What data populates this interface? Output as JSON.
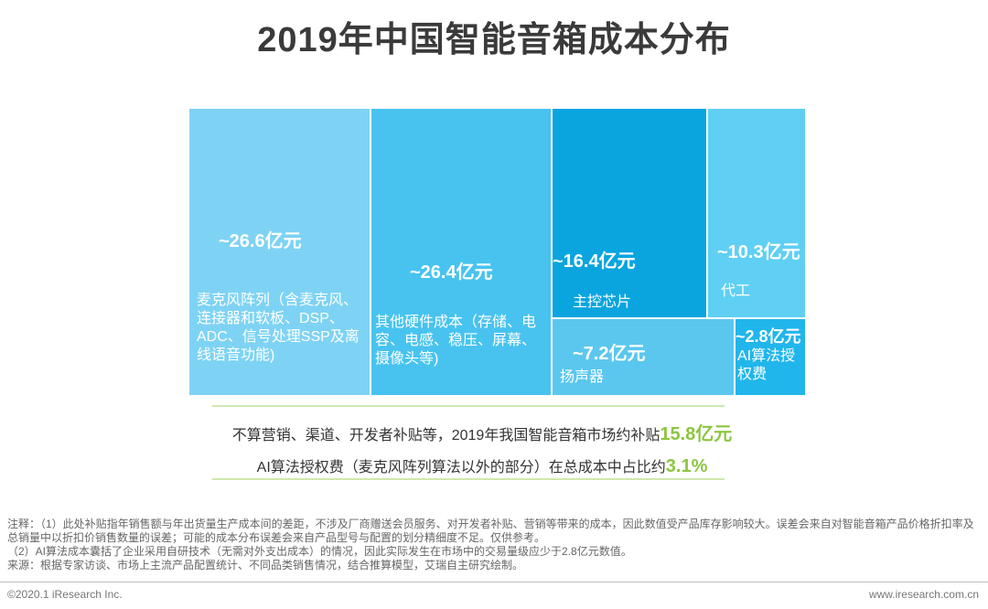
{
  "title": "2019年中国智能音箱成本分布",
  "chart_data": {
    "type": "treemap",
    "title": "2019年中国智能音箱成本分布",
    "unit": "亿元",
    "items": [
      {
        "value_label": "~26.6亿元",
        "value": 26.6,
        "label": "麦克风阵列（含麦克风、连接器和软板、DSP、ADC、信号处理SSP及离线语音功能)",
        "color": "#7ed3f4"
      },
      {
        "value_label": "~26.4亿元",
        "value": 26.4,
        "label": "其他硬件成本（存储、电容、电感、稳压、屏幕、摄像头等)",
        "color": "#48c3ef"
      },
      {
        "value_label": "~16.4亿元",
        "value": 16.4,
        "label": "主控芯片",
        "color": "#0aa5df"
      },
      {
        "value_label": "~10.3亿元",
        "value": 10.3,
        "label": "代工",
        "color": "#5fd0f3"
      },
      {
        "value_label": "~7.2亿元",
        "value": 7.2,
        "label": "扬声器",
        "color": "#5bc7ef"
      },
      {
        "value_label": "~2.8亿元",
        "value": 2.8,
        "label": "AI算法授权费",
        "color": "#21b6eb"
      }
    ]
  },
  "notes": {
    "subsidy_prefix": "不算营销、渠道、开发者补贴等，2019年我国智能音箱市场约补贴",
    "subsidy_value": "15.8亿元",
    "ai_prefix": "AI算法授权费（麦克风阵列算法以外的部分）在总成本中占比约",
    "ai_value": "3.1%",
    "highlight_color": "#8dc63f"
  },
  "footnotes": {
    "note1": "注释：（1）此处补贴指年销售额与年出货量生产成本间的差距，不涉及厂商赠送会员服务、对开发者补贴、营销等带来的成本，因此数值受产品库存影响较大。误差会来自对智能音箱产品价格折扣率及总销量中以折扣价销售数量的误差；可能的成本分布误差会来自产品型号与配置的划分精细度不足。仅供参考。",
    "note2": "（2）AI算法成本囊括了企业采用自研技术（无需对外支出成本）的情况，因此实际发生在市场中的交易量级应少于2.8亿元数值。",
    "source": "来源：根据专家访谈、市场上主流产品配置统计、不同品类销售情况，结合推算模型，艾瑞自主研究绘制。"
  },
  "footer": {
    "copyright": "©2020.1 iResearch Inc.",
    "website": "www.iresearch.com.cn"
  }
}
